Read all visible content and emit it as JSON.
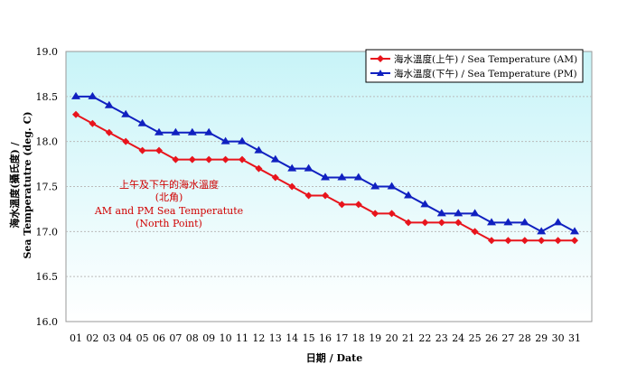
{
  "chart_data": {
    "type": "line",
    "xlabel": "日期 / Date",
    "ylabel_line1": "海水溫度(攝氏度) /",
    "ylabel_line2": "Sea Temperatutre (deg. C)",
    "ylim": [
      16.0,
      19.0
    ],
    "yticks": [
      "16.0",
      "16.5",
      "17.0",
      "17.5",
      "18.0",
      "18.5",
      "19.0"
    ],
    "categories": [
      "01",
      "02",
      "03",
      "04",
      "05",
      "06",
      "07",
      "08",
      "09",
      "10",
      "11",
      "12",
      "13",
      "14",
      "15",
      "16",
      "17",
      "18",
      "19",
      "20",
      "21",
      "22",
      "23",
      "24",
      "25",
      "26",
      "27",
      "28",
      "29",
      "30",
      "31"
    ],
    "grid": "horizontal dashed",
    "legend_position": "top-right",
    "annotation": [
      "上午及下午的海水溫度",
      "(北角)",
      "AM and PM Sea Temperatute",
      "(North Point)"
    ],
    "series": [
      {
        "name": "海水溫度(上午) / Sea Temperature (AM)",
        "color": "#e8141c",
        "marker": "diamond",
        "values": [
          18.3,
          18.2,
          18.1,
          18.0,
          17.9,
          17.9,
          17.8,
          17.8,
          17.8,
          17.8,
          17.8,
          17.7,
          17.6,
          17.5,
          17.4,
          17.4,
          17.3,
          17.3,
          17.2,
          17.2,
          17.1,
          17.1,
          17.1,
          17.1,
          17.0,
          16.9,
          16.9,
          16.9,
          16.9,
          16.9,
          16.9
        ]
      },
      {
        "name": "海水溫度(下午) / Sea Temperature (PM)",
        "color": "#1020c0",
        "marker": "triangle",
        "values": [
          18.5,
          18.5,
          18.4,
          18.3,
          18.2,
          18.1,
          18.1,
          18.1,
          18.1,
          18.0,
          18.0,
          17.9,
          17.8,
          17.7,
          17.7,
          17.6,
          17.6,
          17.6,
          17.5,
          17.5,
          17.4,
          17.3,
          17.2,
          17.2,
          17.2,
          17.1,
          17.1,
          17.1,
          17.0,
          17.1,
          17.0
        ]
      }
    ]
  }
}
